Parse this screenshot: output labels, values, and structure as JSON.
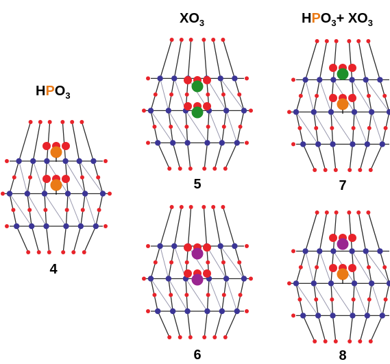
{
  "labels": {
    "hpo3": {
      "pre": "H",
      "accent": "P",
      "mid": "O",
      "sub": "3",
      "post": ""
    },
    "xo3": {
      "pre": "XO",
      "sub": "3"
    },
    "mixed": {
      "pre": "H",
      "accent": "P",
      "mid": "O",
      "sub": "3",
      "plus": "+ XO",
      "sub2": "3"
    }
  },
  "compounds": {
    "c4": "4",
    "c5": "5",
    "c6": "6",
    "c7": "7",
    "c8": "8"
  },
  "colors": {
    "oxygen": "#e8232a",
    "metal": "#3b3596",
    "bond": "#2b2b2b",
    "phosphorus": "#ea7a16",
    "heteroatom_green": "#1f8f2a",
    "heteroatom_purple": "#9a2590",
    "accent_text": "#ea7a16"
  },
  "clusters": [
    {
      "id": "c4",
      "cores": [
        "phosphorus",
        "phosphorus"
      ]
    },
    {
      "id": "c5",
      "cores": [
        "heteroatom_green",
        "heteroatom_green"
      ]
    },
    {
      "id": "c6",
      "cores": [
        "heteroatom_purple",
        "heteroatom_purple"
      ]
    },
    {
      "id": "c7",
      "cores": [
        "heteroatom_green",
        "phosphorus"
      ]
    },
    {
      "id": "c8",
      "cores": [
        "heteroatom_purple",
        "phosphorus"
      ]
    }
  ]
}
